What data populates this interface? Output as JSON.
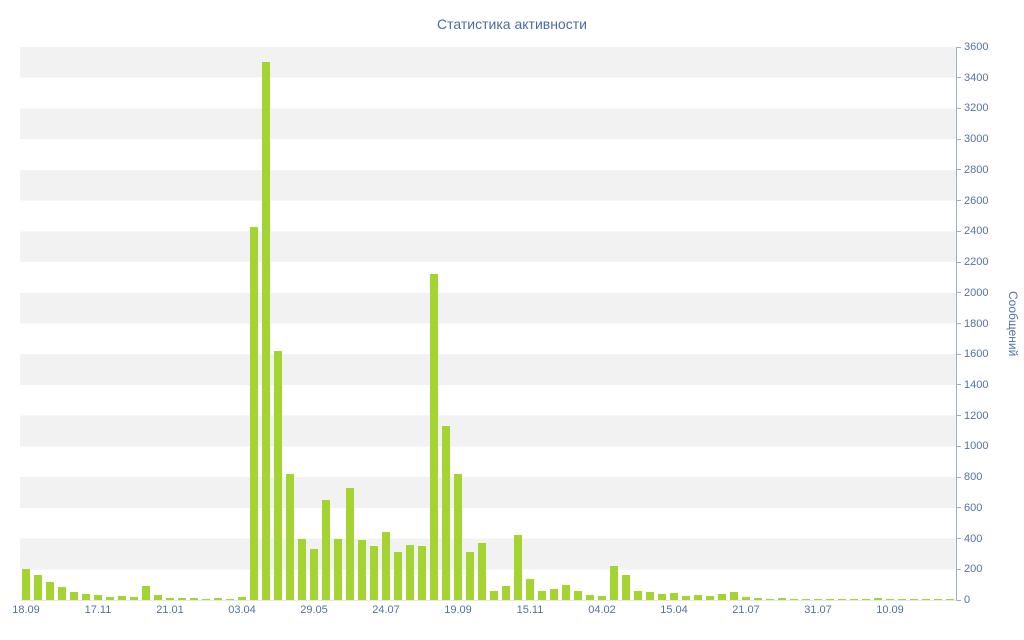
{
  "chart_data": {
    "type": "bar",
    "title": "Статистика активности",
    "xlabel": "",
    "ylabel": "Сообщений",
    "ylim": [
      0,
      3600
    ],
    "y_ticks": [
      0,
      200,
      400,
      600,
      800,
      1000,
      1200,
      1400,
      1600,
      1800,
      2000,
      2200,
      2400,
      2600,
      2800,
      3000,
      3200,
      3400,
      3600
    ],
    "x_labels": [
      "18.09",
      "17.11",
      "21.01",
      "03.04",
      "29.05",
      "24.07",
      "19.09",
      "15.11",
      "04.02",
      "15.04",
      "21.07",
      "31.07",
      "10.09"
    ],
    "label_every": 6,
    "values": [
      200,
      165,
      120,
      85,
      55,
      40,
      30,
      22,
      28,
      22,
      90,
      30,
      12,
      15,
      10,
      8,
      10,
      6,
      20,
      2430,
      3500,
      1620,
      820,
      400,
      330,
      650,
      400,
      730,
      390,
      350,
      440,
      310,
      360,
      350,
      2120,
      1130,
      820,
      310,
      370,
      60,
      90,
      420,
      140,
      60,
      70,
      100,
      60,
      30,
      25,
      220,
      160,
      60,
      50,
      40,
      45,
      25,
      30,
      25,
      40,
      55,
      20,
      10,
      6,
      10,
      5,
      6,
      4,
      6,
      4,
      8,
      5,
      10,
      6,
      4,
      8,
      4,
      6,
      4
    ],
    "grid": "horizontal-stripes",
    "legend": "none",
    "colors": {
      "bar": "#a3d431",
      "stripe": "#f2f2f2",
      "background": "#ffffff",
      "axis_text": "#54739e",
      "title": "#4a6d9e",
      "axis_line": "#9fb0c5"
    }
  }
}
